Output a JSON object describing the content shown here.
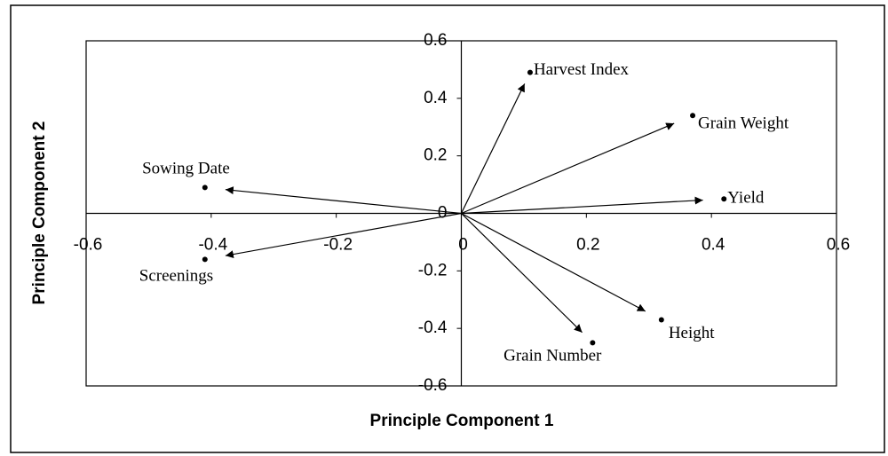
{
  "chart_data": {
    "type": "scatter",
    "xlabel": "Principle Component 1",
    "ylabel": "Principle Component 2",
    "labels": [
      "Harvest Index",
      "Grain Weight",
      "Yield",
      "Sowing Date",
      "Screenings",
      "Height",
      "Grain Number"
    ],
    "x": [
      0.11,
      0.37,
      0.42,
      -0.41,
      -0.41,
      0.32,
      0.21
    ],
    "values": [
      0.49,
      0.34,
      0.05,
      0.09,
      -0.16,
      -0.37,
      -0.45
    ],
    "color": "#000000",
    "xlim": [
      -0.6,
      0.6
    ],
    "xticks": [
      -0.6,
      -0.4,
      -0.2,
      0,
      0.2,
      0.4,
      0.6
    ],
    "ylim": [
      -0.6,
      0.6
    ],
    "yticks": [
      -0.6,
      -0.4,
      -0.2,
      0,
      0.2,
      0.4,
      0.6
    ]
  }
}
